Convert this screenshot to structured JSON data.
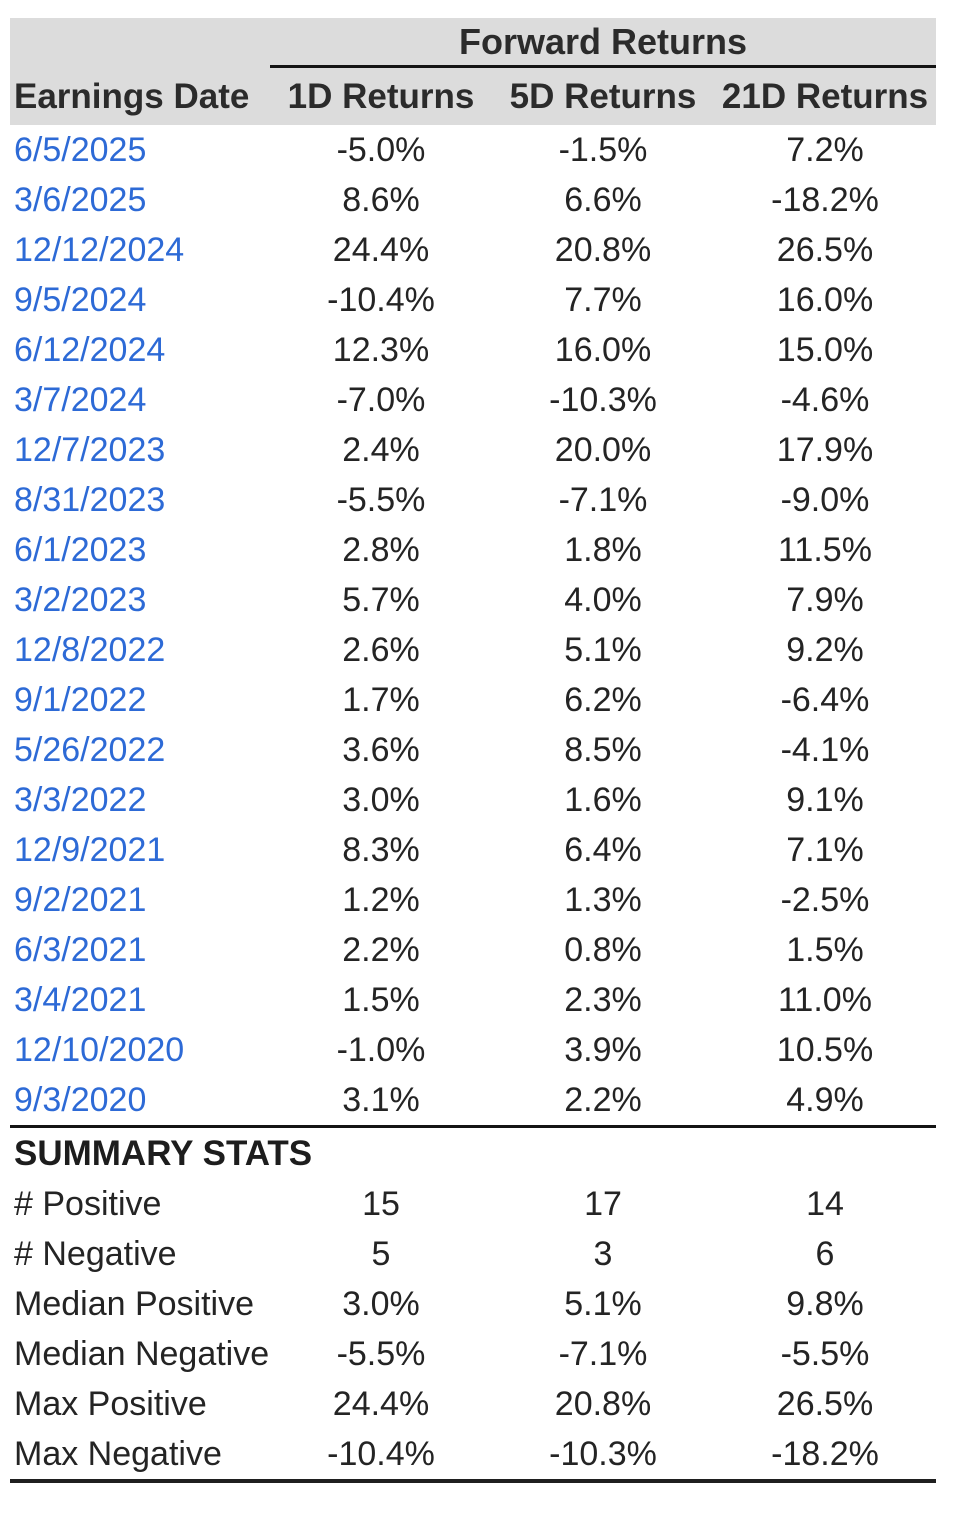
{
  "chart_data": {
    "type": "table",
    "title": "Forward Returns",
    "columns": [
      "Earnings Date",
      "1D Returns",
      "5D Returns",
      "21D Returns"
    ],
    "rows": [
      {
        "date": "6/5/2025",
        "d1": "-5.0%",
        "d5": "-1.5%",
        "d21": "7.2%"
      },
      {
        "date": "3/6/2025",
        "d1": "8.6%",
        "d5": "6.6%",
        "d21": "-18.2%"
      },
      {
        "date": "12/12/2024",
        "d1": "24.4%",
        "d5": "20.8%",
        "d21": "26.5%"
      },
      {
        "date": "9/5/2024",
        "d1": "-10.4%",
        "d5": "7.7%",
        "d21": "16.0%"
      },
      {
        "date": "6/12/2024",
        "d1": "12.3%",
        "d5": "16.0%",
        "d21": "15.0%"
      },
      {
        "date": "3/7/2024",
        "d1": "-7.0%",
        "d5": "-10.3%",
        "d21": "-4.6%"
      },
      {
        "date": "12/7/2023",
        "d1": "2.4%",
        "d5": "20.0%",
        "d21": "17.9%"
      },
      {
        "date": "8/31/2023",
        "d1": "-5.5%",
        "d5": "-7.1%",
        "d21": "-9.0%"
      },
      {
        "date": "6/1/2023",
        "d1": "2.8%",
        "d5": "1.8%",
        "d21": "11.5%"
      },
      {
        "date": "3/2/2023",
        "d1": "5.7%",
        "d5": "4.0%",
        "d21": "7.9%"
      },
      {
        "date": "12/8/2022",
        "d1": "2.6%",
        "d5": "5.1%",
        "d21": "9.2%"
      },
      {
        "date": "9/1/2022",
        "d1": "1.7%",
        "d5": "6.2%",
        "d21": "-6.4%"
      },
      {
        "date": "5/26/2022",
        "d1": "3.6%",
        "d5": "8.5%",
        "d21": "-4.1%"
      },
      {
        "date": "3/3/2022",
        "d1": "3.0%",
        "d5": "1.6%",
        "d21": "9.1%"
      },
      {
        "date": "12/9/2021",
        "d1": "8.3%",
        "d5": "6.4%",
        "d21": "7.1%"
      },
      {
        "date": "9/2/2021",
        "d1": "1.2%",
        "d5": "1.3%",
        "d21": "-2.5%"
      },
      {
        "date": "6/3/2021",
        "d1": "2.2%",
        "d5": "0.8%",
        "d21": "1.5%"
      },
      {
        "date": "3/4/2021",
        "d1": "1.5%",
        "d5": "2.3%",
        "d21": "11.0%"
      },
      {
        "date": "12/10/2020",
        "d1": "-1.0%",
        "d5": "3.9%",
        "d21": "10.5%"
      },
      {
        "date": "9/3/2020",
        "d1": "3.1%",
        "d5": "2.2%",
        "d21": "4.9%"
      }
    ],
    "summary_label": "SUMMARY STATS",
    "summary_rows": [
      {
        "label": "# Positive",
        "d1": "15",
        "d5": "17",
        "d21": "14"
      },
      {
        "label": "# Negative",
        "d1": "5",
        "d5": "3",
        "d21": "6"
      },
      {
        "label": "Median Positive",
        "d1": "3.0%",
        "d5": "5.1%",
        "d21": "9.8%"
      },
      {
        "label": "Median Negative",
        "d1": "-5.5%",
        "d5": "-7.1%",
        "d21": "-5.5%"
      },
      {
        "label": "Max Positive",
        "d1": "24.4%",
        "d5": "20.8%",
        "d21": "26.5%"
      },
      {
        "label": "Max Negative",
        "d1": "-10.4%",
        "d5": "-10.3%",
        "d21": "-18.2%"
      }
    ],
    "layout_hints": {
      "header_background": "#dcdcdc",
      "date_link_color": "#2d6ad6",
      "text_color": "#242424",
      "rule_color": "#1a1a1a",
      "grid": "off",
      "value_alignment": "center"
    }
  }
}
